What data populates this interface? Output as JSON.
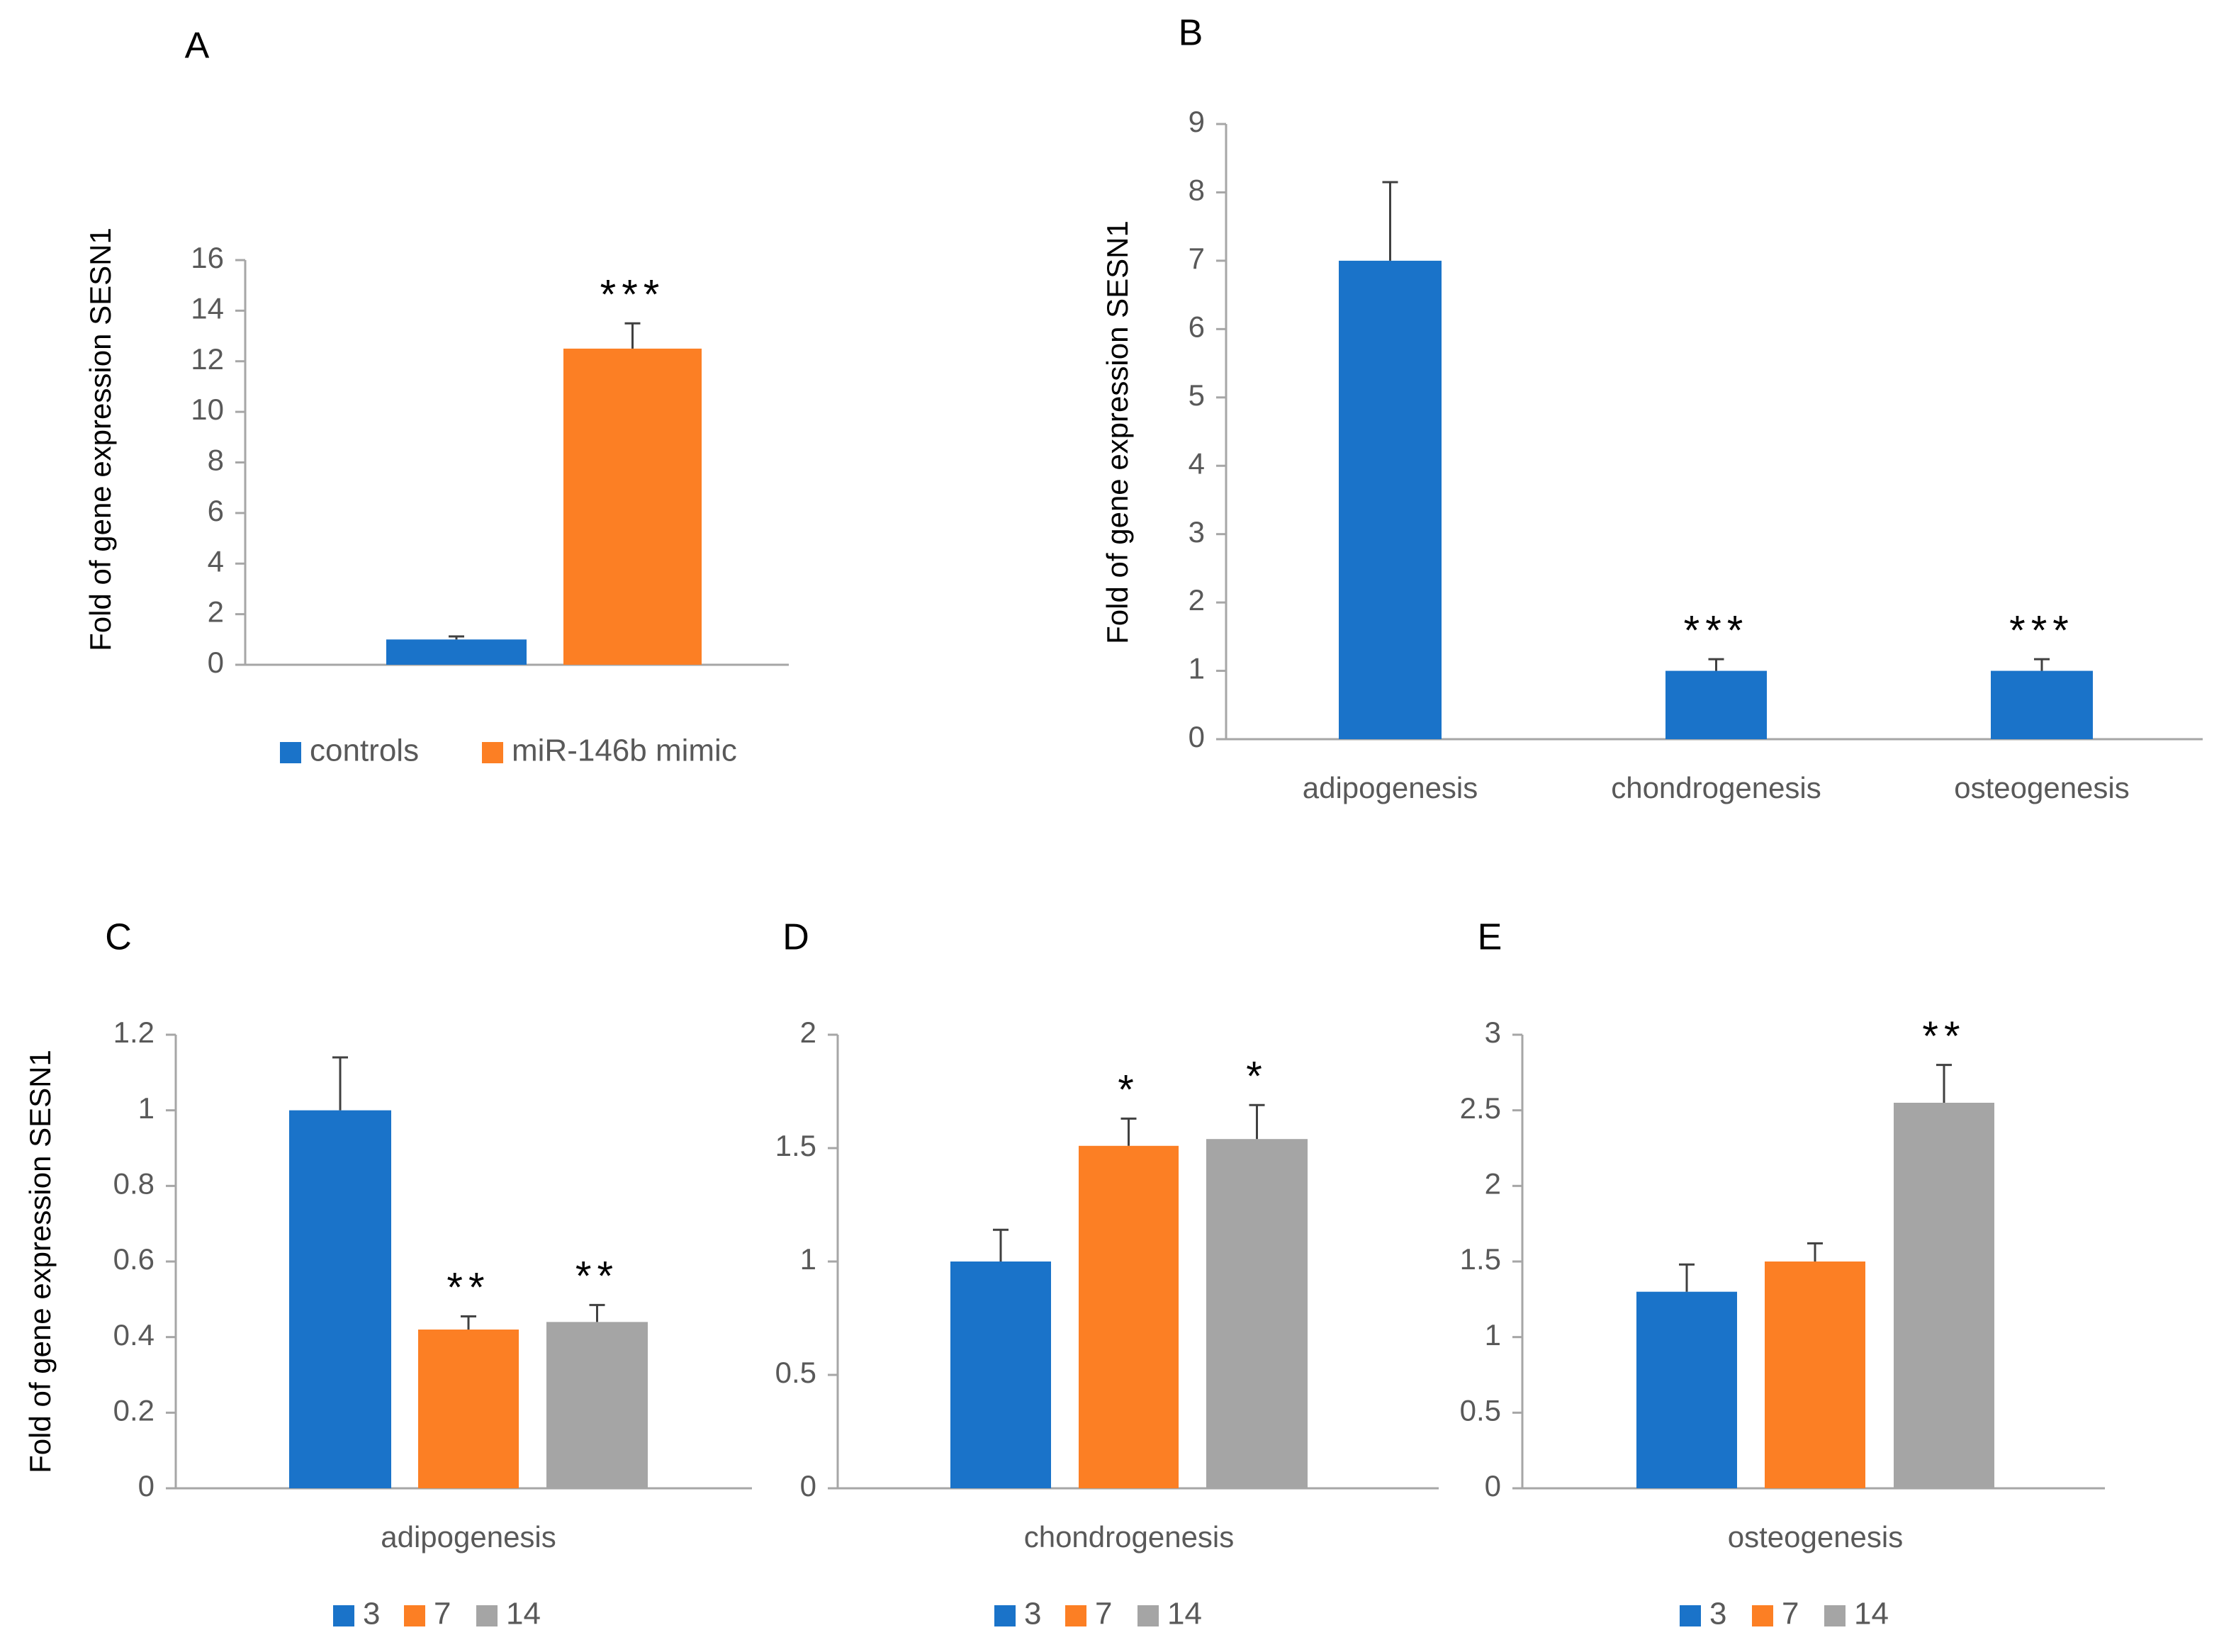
{
  "chart_data": [
    {
      "panel": "A",
      "type": "bar",
      "ylabel": "Fold of gene expression SESN1",
      "xlabel": "",
      "ylim": [
        0,
        16
      ],
      "yticks": [
        0,
        2,
        4,
        6,
        8,
        10,
        12,
        14,
        16
      ],
      "ytick_labels": [
        "0",
        "2",
        "4",
        "6",
        "8",
        "10",
        "12",
        "14",
        "16"
      ],
      "categories": [
        ""
      ],
      "series": [
        {
          "name": "controls",
          "color": "#1a73c9",
          "values": [
            1.0
          ],
          "errors": [
            0.12
          ],
          "significance": [
            ""
          ]
        },
        {
          "name": "miR-146b mimic",
          "color": "#fc7f24",
          "values": [
            12.5
          ],
          "errors": [
            1.0
          ],
          "significance": [
            "***"
          ]
        }
      ],
      "legend": "bottom"
    },
    {
      "panel": "B",
      "type": "bar",
      "ylabel": "Fold of gene expression SESN1",
      "xlabel": "",
      "ylim": [
        0,
        9
      ],
      "yticks": [
        0,
        1,
        2,
        3,
        4,
        5,
        6,
        7,
        8,
        9
      ],
      "ytick_labels": [
        "0",
        "1",
        "2",
        "3",
        "4",
        "5",
        "6",
        "7",
        "8",
        "9"
      ],
      "categories": [
        "adipogenesis",
        "chondrogenesis",
        "osteogenesis"
      ],
      "series": [
        {
          "name": "",
          "color": "#1a73c9",
          "values": [
            7.0,
            1.0,
            1.0
          ],
          "errors": [
            1.15,
            0.17,
            0.17
          ],
          "significance": [
            "",
            "***",
            "***"
          ]
        }
      ],
      "legend": "none"
    },
    {
      "panel": "C",
      "type": "bar",
      "ylabel": "Fold of gene expression SESN1",
      "xlabel": "",
      "ylim": [
        0,
        1.2
      ],
      "yticks": [
        0,
        0.2,
        0.4,
        0.6,
        0.8,
        1.0,
        1.2
      ],
      "ytick_labels": [
        "0",
        "0.2",
        "0.4",
        "0.6",
        "0.8",
        "1",
        "1.2"
      ],
      "categories": [
        "adipogenesis"
      ],
      "series": [
        {
          "name": "3",
          "color": "#1a73c9",
          "values": [
            1.0
          ],
          "errors": [
            0.14
          ],
          "significance": [
            ""
          ]
        },
        {
          "name": "7",
          "color": "#fc7f24",
          "values": [
            0.42
          ],
          "errors": [
            0.035
          ],
          "significance": [
            "**"
          ]
        },
        {
          "name": "14",
          "color": "#a5a5a5",
          "values": [
            0.44
          ],
          "errors": [
            0.045
          ],
          "significance": [
            "**"
          ]
        }
      ],
      "legend": "bottom"
    },
    {
      "panel": "D",
      "type": "bar",
      "ylabel": "",
      "xlabel": "",
      "ylim": [
        0,
        2
      ],
      "yticks": [
        0,
        0.5,
        1.0,
        1.5,
        2.0
      ],
      "ytick_labels": [
        "0",
        "0.5",
        "1",
        "1.5",
        "2"
      ],
      "categories": [
        "chondrogenesis"
      ],
      "series": [
        {
          "name": "3",
          "color": "#1a73c9",
          "values": [
            1.0
          ],
          "errors": [
            0.14
          ],
          "significance": [
            ""
          ]
        },
        {
          "name": "7",
          "color": "#fc7f24",
          "values": [
            1.51
          ],
          "errors": [
            0.12
          ],
          "significance": [
            "*"
          ]
        },
        {
          "name": "14",
          "color": "#a5a5a5",
          "values": [
            1.54
          ],
          "errors": [
            0.15
          ],
          "significance": [
            "*"
          ]
        }
      ],
      "legend": "bottom"
    },
    {
      "panel": "E",
      "type": "bar",
      "ylabel": "",
      "xlabel": "",
      "ylim": [
        0,
        3
      ],
      "yticks": [
        0,
        0.5,
        1.0,
        1.5,
        2.0,
        2.5,
        3.0
      ],
      "ytick_labels": [
        "0",
        "0.5",
        "1",
        "1.5",
        "2",
        "2.5",
        "3"
      ],
      "categories": [
        "osteogenesis"
      ],
      "series": [
        {
          "name": "3",
          "color": "#1a73c9",
          "values": [
            1.3
          ],
          "errors": [
            0.18
          ],
          "significance": [
            ""
          ]
        },
        {
          "name": "7",
          "color": "#fc7f24",
          "values": [
            1.5
          ],
          "errors": [
            0.12
          ],
          "significance": [
            ""
          ]
        },
        {
          "name": "14",
          "color": "#a5a5a5",
          "values": [
            2.55
          ],
          "errors": [
            0.25
          ],
          "significance": [
            "**"
          ]
        }
      ],
      "legend": "bottom"
    }
  ],
  "colors": {
    "axis": "#a6a6a6",
    "text": "#595959",
    "error": "#404040",
    "letter": "#000000"
  }
}
